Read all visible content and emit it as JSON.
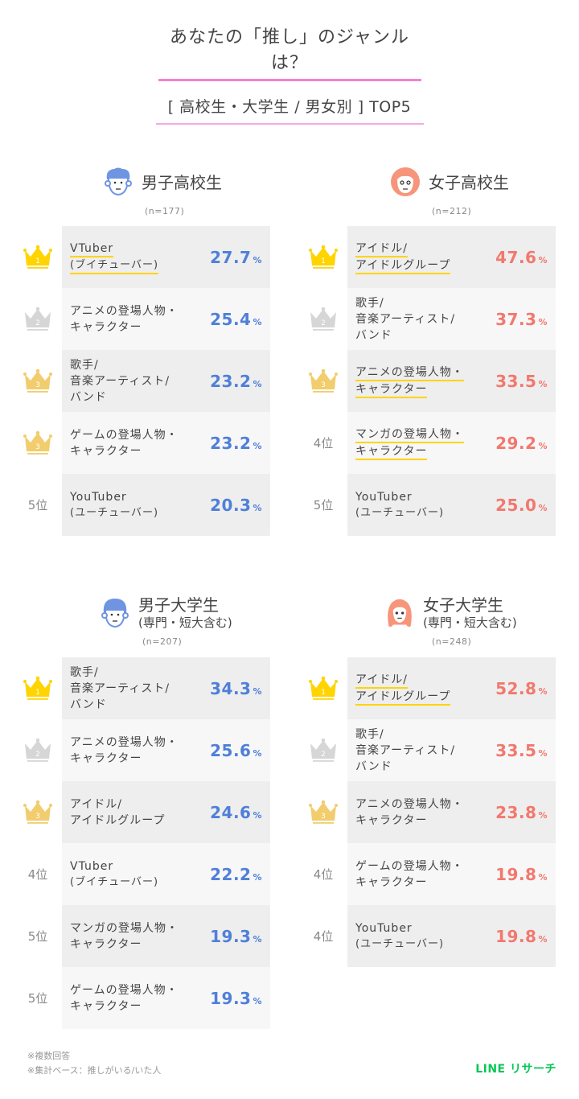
{
  "header": {
    "title": "あなたの「推し」のジャンルは？",
    "subtitle": "[ 高校生・大学生 / 男女別 ] TOP5"
  },
  "colors": {
    "title_underline": "#f57fd8",
    "male_value": "#4f7fd9",
    "female_value": "#f2786e",
    "highlight_underline": "#ffd400",
    "crown_gold": "#ffd400",
    "crown_silver": "#d6d6d6",
    "crown_bronze": "#f2cd6e",
    "row_dark": "#eeeeee",
    "row_light": "#f7f7f7",
    "brand": "#06c755"
  },
  "panels": {
    "male_hs": {
      "label": "男子高校生",
      "sub": "",
      "n": "(n=177)",
      "rows": [
        {
          "rank": "1",
          "rank_type": "crown-gold",
          "lines": [
            "VTuber",
            "(ブイチューバー)"
          ],
          "value": "27.7",
          "pct": "%",
          "highlight": true
        },
        {
          "rank": "2",
          "rank_type": "crown-silver",
          "lines": [
            "アニメの登場人物・",
            "キャラクター"
          ],
          "value": "25.4",
          "pct": "%",
          "highlight": false
        },
        {
          "rank": "3",
          "rank_type": "crown-bronze",
          "lines": [
            "歌手/",
            "音楽アーティスト/",
            "バンド"
          ],
          "value": "23.2",
          "pct": "%",
          "highlight": false
        },
        {
          "rank": "3",
          "rank_type": "crown-bronze",
          "lines": [
            "ゲームの登場人物・",
            "キャラクター"
          ],
          "value": "23.2",
          "pct": "%",
          "highlight": false
        },
        {
          "rank": "5位",
          "rank_type": "text",
          "lines": [
            "YouTuber",
            "(ユーチューバー)"
          ],
          "value": "20.3",
          "pct": "%",
          "highlight": false
        }
      ]
    },
    "female_hs": {
      "label": "女子高校生",
      "sub": "",
      "n": "(n=212)",
      "rows": [
        {
          "rank": "1",
          "rank_type": "crown-gold",
          "lines": [
            "アイドル/",
            "アイドルグループ"
          ],
          "value": "47.6",
          "pct": "%",
          "highlight": true
        },
        {
          "rank": "2",
          "rank_type": "crown-silver",
          "lines": [
            "歌手/",
            "音楽アーティスト/",
            "バンド"
          ],
          "value": "37.3",
          "pct": "%",
          "highlight": false
        },
        {
          "rank": "3",
          "rank_type": "crown-bronze",
          "lines": [
            "アニメの登場人物・",
            "キャラクター"
          ],
          "value": "33.5",
          "pct": "%",
          "highlight": true
        },
        {
          "rank": "4位",
          "rank_type": "text",
          "lines": [
            "マンガの登場人物・",
            "キャラクター"
          ],
          "value": "29.2",
          "pct": "%",
          "highlight": true
        },
        {
          "rank": "5位",
          "rank_type": "text",
          "lines": [
            "YouTuber",
            "(ユーチューバー)"
          ],
          "value": "25.0",
          "pct": "%",
          "highlight": false
        }
      ]
    },
    "male_univ": {
      "label": "男子大学生",
      "sub": "(専門・短大含む)",
      "n": "(n=207)",
      "rows": [
        {
          "rank": "1",
          "rank_type": "crown-gold",
          "lines": [
            "歌手/",
            "音楽アーティスト/",
            "バンド"
          ],
          "value": "34.3",
          "pct": "%",
          "highlight": false
        },
        {
          "rank": "2",
          "rank_type": "crown-silver",
          "lines": [
            "アニメの登場人物・",
            "キャラクター"
          ],
          "value": "25.6",
          "pct": "%",
          "highlight": false
        },
        {
          "rank": "3",
          "rank_type": "crown-bronze",
          "lines": [
            "アイドル/",
            "アイドルグループ"
          ],
          "value": "24.6",
          "pct": "%",
          "highlight": false
        },
        {
          "rank": "4位",
          "rank_type": "text",
          "lines": [
            "VTuber",
            "(ブイチューバー)"
          ],
          "value": "22.2",
          "pct": "%",
          "highlight": false
        },
        {
          "rank": "5位",
          "rank_type": "text",
          "lines": [
            "マンガの登場人物・",
            "キャラクター"
          ],
          "value": "19.3",
          "pct": "%",
          "highlight": false
        },
        {
          "rank": "5位",
          "rank_type": "text",
          "lines": [
            "ゲームの登場人物・",
            "キャラクター"
          ],
          "value": "19.3",
          "pct": "%",
          "highlight": false
        }
      ]
    },
    "female_univ": {
      "label": "女子大学生",
      "sub": "(専門・短大含む)",
      "n": "(n=248)",
      "rows": [
        {
          "rank": "1",
          "rank_type": "crown-gold",
          "lines": [
            "アイドル/",
            "アイドルグループ"
          ],
          "value": "52.8",
          "pct": "%",
          "highlight": true
        },
        {
          "rank": "2",
          "rank_type": "crown-silver",
          "lines": [
            "歌手/",
            "音楽アーティスト/",
            "バンド"
          ],
          "value": "33.5",
          "pct": "%",
          "highlight": false
        },
        {
          "rank": "3",
          "rank_type": "crown-bronze",
          "lines": [
            "アニメの登場人物・",
            "キャラクター"
          ],
          "value": "23.8",
          "pct": "%",
          "highlight": false
        },
        {
          "rank": "4位",
          "rank_type": "text",
          "lines": [
            "ゲームの登場人物・",
            "キャラクター"
          ],
          "value": "19.8",
          "pct": "%",
          "highlight": false
        },
        {
          "rank": "4位",
          "rank_type": "text",
          "lines": [
            "YouTuber",
            "(ユーチューバー)"
          ],
          "value": "19.8",
          "pct": "%",
          "highlight": false
        }
      ]
    }
  },
  "footer": {
    "notes": [
      "※複数回答",
      "※集計ベース：推しがいる/いた人"
    ],
    "brand": "LINE リサーチ"
  },
  "chart_data": [
    {
      "type": "table",
      "title": "男子高校生 (n=177)",
      "categories": [
        "VTuber(ブイチューバー)",
        "アニメの登場人物・キャラクター",
        "歌手/音楽アーティスト/バンド",
        "ゲームの登場人物・キャラクター",
        "YouTuber(ユーチューバー)"
      ],
      "ranks": [
        1,
        2,
        3,
        3,
        5
      ],
      "values": [
        27.7,
        25.4,
        23.2,
        23.2,
        20.3
      ],
      "unit": "%"
    },
    {
      "type": "table",
      "title": "女子高校生 (n=212)",
      "categories": [
        "アイドル/アイドルグループ",
        "歌手/音楽アーティスト/バンド",
        "アニメの登場人物・キャラクター",
        "マンガの登場人物・キャラクター",
        "YouTuber(ユーチューバー)"
      ],
      "ranks": [
        1,
        2,
        3,
        4,
        5
      ],
      "values": [
        47.6,
        37.3,
        33.5,
        29.2,
        25.0
      ],
      "unit": "%"
    },
    {
      "type": "table",
      "title": "男子大学生(専門・短大含む) (n=207)",
      "categories": [
        "歌手/音楽アーティスト/バンド",
        "アニメの登場人物・キャラクター",
        "アイドル/アイドルグループ",
        "VTuber(ブイチューバー)",
        "マンガの登場人物・キャラクター",
        "ゲームの登場人物・キャラクター"
      ],
      "ranks": [
        1,
        2,
        3,
        4,
        5,
        5
      ],
      "values": [
        34.3,
        25.6,
        24.6,
        22.2,
        19.3,
        19.3
      ],
      "unit": "%"
    },
    {
      "type": "table",
      "title": "女子大学生(専門・短大含む) (n=248)",
      "categories": [
        "アイドル/アイドルグループ",
        "歌手/音楽アーティスト/バンド",
        "アニメの登場人物・キャラクター",
        "ゲームの登場人物・キャラクター",
        "YouTuber(ユーチューバー)"
      ],
      "ranks": [
        1,
        2,
        3,
        4,
        4
      ],
      "values": [
        52.8,
        33.5,
        23.8,
        19.8,
        19.8
      ],
      "unit": "%"
    }
  ]
}
